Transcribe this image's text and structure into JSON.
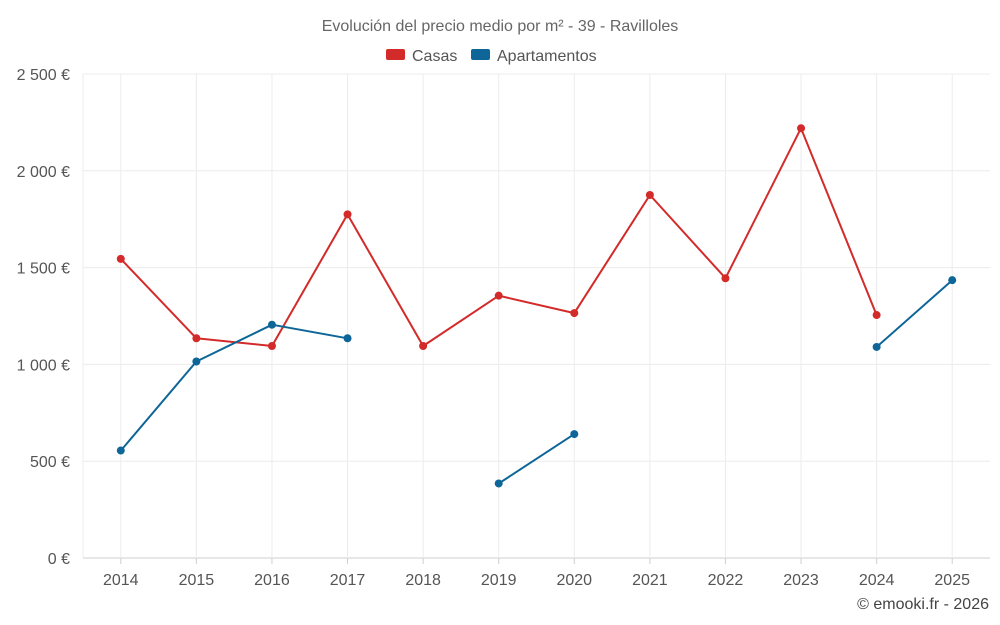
{
  "chart_data": {
    "type": "line",
    "title": "Evolución del precio medio por m² - 39 - Ravilloles",
    "categories": [
      "2014",
      "2015",
      "2016",
      "2017",
      "2018",
      "2019",
      "2020",
      "2021",
      "2022",
      "2023",
      "2024",
      "2025"
    ],
    "ylim": [
      0,
      2500
    ],
    "yticks": [
      0,
      500,
      1000,
      1500,
      2000,
      2500
    ],
    "ytick_labels": [
      "0 €",
      "500 €",
      "1 000 €",
      "1 500 €",
      "2 000 €",
      "2 500 €"
    ],
    "grid": true,
    "legend_position": "top-center",
    "series": [
      {
        "name": "Casas",
        "color": "#d32a2a",
        "values": [
          1545,
          1135,
          1095,
          1775,
          1095,
          1355,
          1265,
          1875,
          1445,
          2220,
          1255,
          null
        ]
      },
      {
        "name": "Apartamentos",
        "color": "#0d6697",
        "values": [
          555,
          1015,
          1205,
          1135,
          null,
          385,
          640,
          null,
          null,
          null,
          1090,
          1435
        ]
      }
    ]
  },
  "credit": "© emooki.fr - 2026"
}
